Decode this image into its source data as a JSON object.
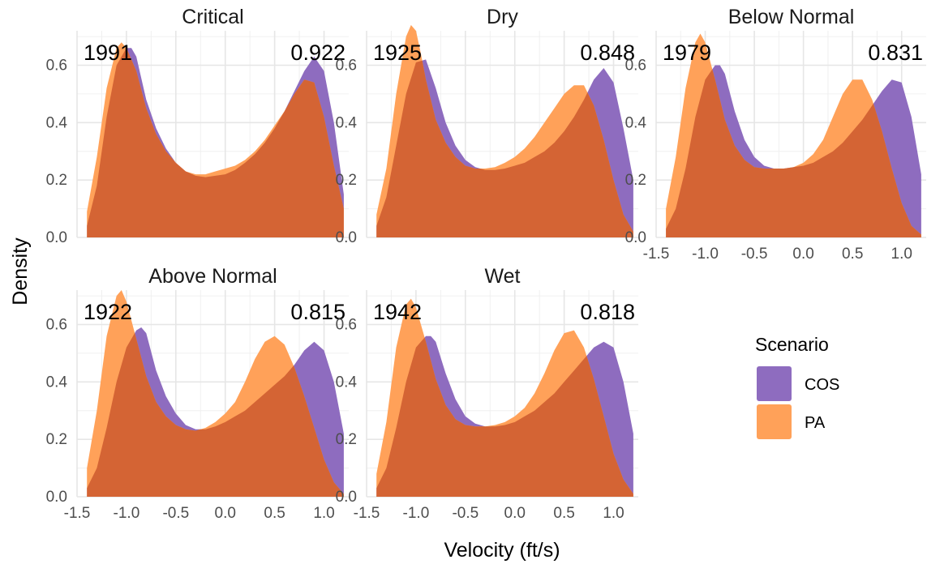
{
  "chart_data": {
    "type": "area",
    "chart_kind": "faceted density plot",
    "xlabel": "Velocity (ft/s)",
    "ylabel": "Density",
    "xlim": [
      -1.5,
      1.25
    ],
    "ylim": [
      0,
      0.72
    ],
    "x_ticks": [
      "-1.5",
      "-1.0",
      "-0.5",
      "0.0",
      "0.5",
      "1.0"
    ],
    "y_ticks": [
      "0.0",
      "0.2",
      "0.4",
      "0.6"
    ],
    "grid": true,
    "legend": {
      "title": "Scenario",
      "position": "right",
      "entries": [
        {
          "name": "COS",
          "color": "#8e6cbf"
        },
        {
          "name": "PA",
          "color": "#ffa159"
        }
      ]
    },
    "overlap_color": "#d46434",
    "panels": [
      {
        "title": "Critical",
        "year": "1991",
        "value": "0.922",
        "series": [
          {
            "name": "COS",
            "x": [
              -1.4,
              -1.3,
              -1.2,
              -1.1,
              -1.0,
              -0.95,
              -0.9,
              -0.8,
              -0.7,
              -0.6,
              -0.5,
              -0.4,
              -0.3,
              -0.2,
              -0.1,
              0.0,
              0.1,
              0.2,
              0.3,
              0.4,
              0.5,
              0.6,
              0.7,
              0.8,
              0.9,
              1.0,
              1.1,
              1.2
            ],
            "y": [
              0.04,
              0.18,
              0.42,
              0.6,
              0.66,
              0.66,
              0.63,
              0.48,
              0.38,
              0.31,
              0.26,
              0.23,
              0.215,
              0.21,
              0.215,
              0.22,
              0.235,
              0.26,
              0.29,
              0.33,
              0.38,
              0.44,
              0.51,
              0.58,
              0.63,
              0.58,
              0.4,
              0.15
            ]
          },
          {
            "name": "PA",
            "x": [
              -1.4,
              -1.3,
              -1.2,
              -1.1,
              -1.05,
              -1.0,
              -0.9,
              -0.8,
              -0.7,
              -0.6,
              -0.5,
              -0.4,
              -0.3,
              -0.2,
              -0.1,
              0.0,
              0.1,
              0.2,
              0.3,
              0.4,
              0.5,
              0.6,
              0.7,
              0.8,
              0.9,
              1.0,
              1.1,
              1.2
            ],
            "y": [
              0.09,
              0.28,
              0.52,
              0.66,
              0.68,
              0.66,
              0.58,
              0.45,
              0.36,
              0.3,
              0.26,
              0.23,
              0.22,
              0.22,
              0.23,
              0.24,
              0.25,
              0.27,
              0.3,
              0.34,
              0.39,
              0.44,
              0.5,
              0.55,
              0.54,
              0.42,
              0.25,
              0.1
            ]
          }
        ]
      },
      {
        "title": "Dry",
        "year": "1925",
        "value": "0.848",
        "series": [
          {
            "name": "COS",
            "x": [
              -1.4,
              -1.3,
              -1.2,
              -1.1,
              -1.0,
              -0.9,
              -0.8,
              -0.7,
              -0.6,
              -0.5,
              -0.4,
              -0.3,
              -0.2,
              -0.1,
              0.0,
              0.1,
              0.2,
              0.3,
              0.4,
              0.5,
              0.6,
              0.7,
              0.8,
              0.9,
              1.0,
              1.1,
              1.2
            ],
            "y": [
              0.04,
              0.14,
              0.32,
              0.5,
              0.61,
              0.62,
              0.52,
              0.4,
              0.32,
              0.27,
              0.245,
              0.235,
              0.235,
              0.24,
              0.25,
              0.26,
              0.28,
              0.3,
              0.33,
              0.37,
              0.42,
              0.48,
              0.55,
              0.59,
              0.54,
              0.38,
              0.2
            ]
          },
          {
            "name": "PA",
            "x": [
              -1.4,
              -1.3,
              -1.2,
              -1.1,
              -1.05,
              -1.0,
              -0.95,
              -0.9,
              -0.8,
              -0.7,
              -0.6,
              -0.5,
              -0.4,
              -0.3,
              -0.2,
              -0.1,
              0.0,
              0.1,
              0.2,
              0.3,
              0.4,
              0.5,
              0.6,
              0.7,
              0.8,
              0.9,
              1.0,
              1.1,
              1.2
            ],
            "y": [
              0.08,
              0.24,
              0.5,
              0.7,
              0.74,
              0.72,
              0.64,
              0.55,
              0.41,
              0.33,
              0.28,
              0.25,
              0.24,
              0.24,
              0.245,
              0.26,
              0.28,
              0.31,
              0.35,
              0.4,
              0.45,
              0.5,
              0.53,
              0.53,
              0.46,
              0.34,
              0.2,
              0.08,
              0.02
            ]
          }
        ]
      },
      {
        "title": "Below Normal",
        "year": "1979",
        "value": "0.831",
        "series": [
          {
            "name": "COS",
            "x": [
              -1.4,
              -1.3,
              -1.2,
              -1.1,
              -1.0,
              -0.9,
              -0.85,
              -0.8,
              -0.7,
              -0.6,
              -0.5,
              -0.4,
              -0.3,
              -0.2,
              -0.1,
              0.0,
              0.1,
              0.2,
              0.3,
              0.4,
              0.5,
              0.6,
              0.7,
              0.8,
              0.9,
              1.0,
              1.1,
              1.2
            ],
            "y": [
              0.03,
              0.1,
              0.24,
              0.42,
              0.55,
              0.6,
              0.6,
              0.57,
              0.44,
              0.34,
              0.28,
              0.25,
              0.24,
              0.24,
              0.245,
              0.25,
              0.26,
              0.28,
              0.3,
              0.33,
              0.37,
              0.41,
              0.46,
              0.51,
              0.55,
              0.54,
              0.42,
              0.22
            ]
          },
          {
            "name": "PA",
            "x": [
              -1.4,
              -1.3,
              -1.2,
              -1.1,
              -1.05,
              -1.0,
              -0.9,
              -0.8,
              -0.7,
              -0.6,
              -0.5,
              -0.4,
              -0.3,
              -0.2,
              -0.1,
              0.0,
              0.1,
              0.2,
              0.3,
              0.4,
              0.5,
              0.6,
              0.7,
              0.8,
              0.9,
              1.0,
              1.1,
              1.2
            ],
            "y": [
              0.1,
              0.28,
              0.52,
              0.68,
              0.71,
              0.68,
              0.55,
              0.41,
              0.32,
              0.27,
              0.245,
              0.24,
              0.24,
              0.24,
              0.245,
              0.26,
              0.29,
              0.34,
              0.42,
              0.5,
              0.55,
              0.55,
              0.48,
              0.37,
              0.24,
              0.12,
              0.04,
              0.01
            ]
          }
        ]
      },
      {
        "title": "Above Normal",
        "year": "1922",
        "value": "0.815",
        "series": [
          {
            "name": "COS",
            "x": [
              -1.4,
              -1.3,
              -1.2,
              -1.1,
              -1.0,
              -0.9,
              -0.85,
              -0.8,
              -0.7,
              -0.6,
              -0.5,
              -0.4,
              -0.3,
              -0.2,
              -0.1,
              0.0,
              0.1,
              0.2,
              0.3,
              0.4,
              0.5,
              0.6,
              0.7,
              0.8,
              0.9,
              1.0,
              1.1,
              1.2
            ],
            "y": [
              0.03,
              0.1,
              0.24,
              0.4,
              0.52,
              0.58,
              0.59,
              0.57,
              0.44,
              0.35,
              0.29,
              0.25,
              0.235,
              0.235,
              0.245,
              0.26,
              0.28,
              0.3,
              0.33,
              0.36,
              0.39,
              0.42,
              0.46,
              0.51,
              0.54,
              0.51,
              0.4,
              0.22
            ]
          },
          {
            "name": "PA",
            "x": [
              -1.4,
              -1.3,
              -1.2,
              -1.1,
              -1.05,
              -1.0,
              -0.9,
              -0.8,
              -0.7,
              -0.6,
              -0.5,
              -0.4,
              -0.3,
              -0.2,
              -0.1,
              0.0,
              0.1,
              0.2,
              0.3,
              0.4,
              0.5,
              0.6,
              0.7,
              0.8,
              0.9,
              1.0,
              1.1,
              1.2
            ],
            "y": [
              0.1,
              0.3,
              0.56,
              0.7,
              0.72,
              0.68,
              0.55,
              0.42,
              0.33,
              0.28,
              0.25,
              0.235,
              0.23,
              0.24,
              0.26,
              0.29,
              0.33,
              0.4,
              0.48,
              0.54,
              0.56,
              0.53,
              0.45,
              0.35,
              0.24,
              0.13,
              0.05,
              0.01
            ]
          }
        ]
      },
      {
        "title": "Wet",
        "year": "1942",
        "value": "0.818",
        "series": [
          {
            "name": "COS",
            "x": [
              -1.4,
              -1.3,
              -1.2,
              -1.1,
              -1.0,
              -0.9,
              -0.85,
              -0.8,
              -0.7,
              -0.6,
              -0.5,
              -0.4,
              -0.3,
              -0.2,
              -0.1,
              0.0,
              0.1,
              0.2,
              0.3,
              0.4,
              0.5,
              0.6,
              0.7,
              0.8,
              0.9,
              1.0,
              1.1,
              1.2
            ],
            "y": [
              0.03,
              0.1,
              0.24,
              0.4,
              0.52,
              0.56,
              0.56,
              0.54,
              0.43,
              0.34,
              0.28,
              0.255,
              0.245,
              0.245,
              0.25,
              0.26,
              0.28,
              0.3,
              0.33,
              0.36,
              0.4,
              0.44,
              0.48,
              0.52,
              0.54,
              0.52,
              0.4,
              0.22
            ]
          },
          {
            "name": "PA",
            "x": [
              -1.4,
              -1.3,
              -1.2,
              -1.1,
              -1.05,
              -1.0,
              -0.9,
              -0.8,
              -0.7,
              -0.6,
              -0.5,
              -0.4,
              -0.3,
              -0.2,
              -0.1,
              0.0,
              0.1,
              0.2,
              0.3,
              0.4,
              0.5,
              0.6,
              0.7,
              0.8,
              0.9,
              1.0,
              1.1,
              1.2
            ],
            "y": [
              0.08,
              0.26,
              0.52,
              0.67,
              0.69,
              0.66,
              0.54,
              0.41,
              0.32,
              0.27,
              0.25,
              0.245,
              0.245,
              0.25,
              0.26,
              0.28,
              0.31,
              0.36,
              0.43,
              0.51,
              0.57,
              0.58,
              0.52,
              0.41,
              0.28,
              0.15,
              0.06,
              0.01
            ]
          }
        ]
      }
    ]
  }
}
